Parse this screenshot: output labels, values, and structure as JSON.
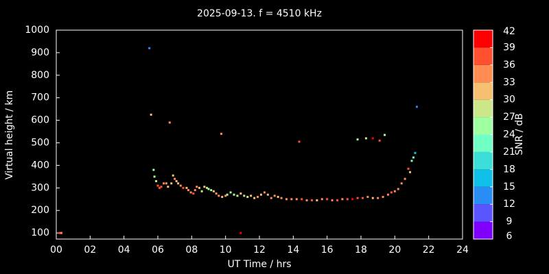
{
  "chart_data": {
    "type": "scatter",
    "title": "2025-09-13. f = 4510 kHz",
    "xlabel": "UT Time / hrs",
    "ylabel": "Virtual height / km",
    "xlim": [
      0,
      24
    ],
    "ylim": [
      73,
      1000
    ],
    "xticks": [
      {
        "value": 0,
        "label": "00"
      },
      {
        "value": 2,
        "label": "02"
      },
      {
        "value": 4,
        "label": "04"
      },
      {
        "value": 6,
        "label": "06"
      },
      {
        "value": 8,
        "label": "08"
      },
      {
        "value": 10,
        "label": "10"
      },
      {
        "value": 12,
        "label": "12"
      },
      {
        "value": 14,
        "label": "14"
      },
      {
        "value": 16,
        "label": "16"
      },
      {
        "value": 18,
        "label": "18"
      },
      {
        "value": 20,
        "label": "20"
      },
      {
        "value": 22,
        "label": "22"
      },
      {
        "value": 24,
        "label": "24"
      }
    ],
    "yticks": [
      100,
      200,
      300,
      400,
      500,
      600,
      700,
      800,
      900,
      1000
    ],
    "x": [
      0.2,
      0.3,
      5.5,
      5.6,
      5.75,
      5.8,
      5.9,
      6.0,
      6.1,
      6.2,
      6.35,
      6.5,
      6.6,
      6.7,
      6.8,
      6.9,
      7.0,
      7.1,
      7.2,
      7.35,
      7.5,
      7.7,
      7.8,
      7.95,
      8.1,
      8.2,
      8.3,
      8.45,
      8.6,
      8.75,
      8.9,
      9.0,
      9.15,
      9.3,
      9.45,
      9.6,
      9.75,
      9.8,
      10.0,
      10.1,
      10.3,
      10.5,
      10.7,
      10.9,
      10.9,
      11.1,
      11.3,
      11.5,
      11.7,
      11.9,
      12.1,
      12.3,
      12.5,
      12.7,
      12.9,
      13.1,
      13.3,
      13.6,
      13.9,
      14.2,
      14.35,
      14.5,
      14.8,
      15.1,
      15.4,
      15.7,
      16.0,
      16.3,
      16.6,
      16.9,
      17.2,
      17.5,
      17.8,
      17.8,
      18.1,
      18.3,
      18.4,
      18.7,
      18.7,
      19.0,
      19.1,
      19.3,
      19.4,
      19.6,
      19.8,
      20.0,
      20.2,
      20.4,
      20.6,
      20.8,
      20.9,
      21.0,
      21.1,
      21.2,
      21.3
    ],
    "values": [
      100,
      100,
      920,
      625,
      380,
      350,
      330,
      310,
      300,
      305,
      320,
      320,
      305,
      590,
      320,
      355,
      340,
      330,
      320,
      310,
      300,
      300,
      290,
      280,
      275,
      290,
      305,
      300,
      285,
      305,
      300,
      295,
      290,
      285,
      275,
      265,
      540,
      260,
      265,
      270,
      280,
      270,
      265,
      100,
      275,
      265,
      260,
      265,
      255,
      260,
      270,
      280,
      270,
      255,
      265,
      260,
      255,
      250,
      250,
      250,
      505,
      250,
      245,
      245,
      245,
      250,
      250,
      245,
      245,
      250,
      250,
      250,
      255,
      515,
      255,
      520,
      260,
      520,
      255,
      255,
      510,
      260,
      535,
      270,
      280,
      285,
      295,
      320,
      340,
      385,
      370,
      420,
      435,
      455,
      660
    ],
    "snr": [
      36,
      33,
      12,
      30,
      24,
      24,
      27,
      36,
      36,
      36,
      33,
      33,
      30,
      33,
      30,
      30,
      33,
      30,
      30,
      33,
      36,
      30,
      33,
      33,
      36,
      33,
      33,
      30,
      27,
      30,
      27,
      24,
      24,
      30,
      33,
      33,
      33,
      30,
      33,
      24,
      24,
      24,
      27,
      39,
      30,
      27,
      27,
      30,
      30,
      33,
      30,
      33,
      30,
      33,
      33,
      30,
      33,
      33,
      33,
      33,
      36,
      36,
      33,
      36,
      30,
      33,
      36,
      33,
      36,
      33,
      36,
      39,
      36,
      24,
      36,
      27,
      33,
      39,
      30,
      33,
      36,
      33,
      24,
      33,
      36,
      33,
      33,
      33,
      33,
      36,
      30,
      21,
      21,
      15,
      12
    ],
    "colorbar": {
      "label": "SNR / dB",
      "lim": [
        6,
        42
      ],
      "ticks": [
        6,
        9,
        12,
        15,
        18,
        21,
        24,
        27,
        30,
        33,
        36,
        39,
        42
      ],
      "colors": [
        "#8000ff",
        "#5a55ff",
        "#2a8cf5",
        "#10c0e8",
        "#3ae0d8",
        "#70ffc4",
        "#a0ffa0",
        "#cce68a",
        "#f6c070",
        "#ff8c50",
        "#ff5030",
        "#ff0000"
      ]
    }
  }
}
